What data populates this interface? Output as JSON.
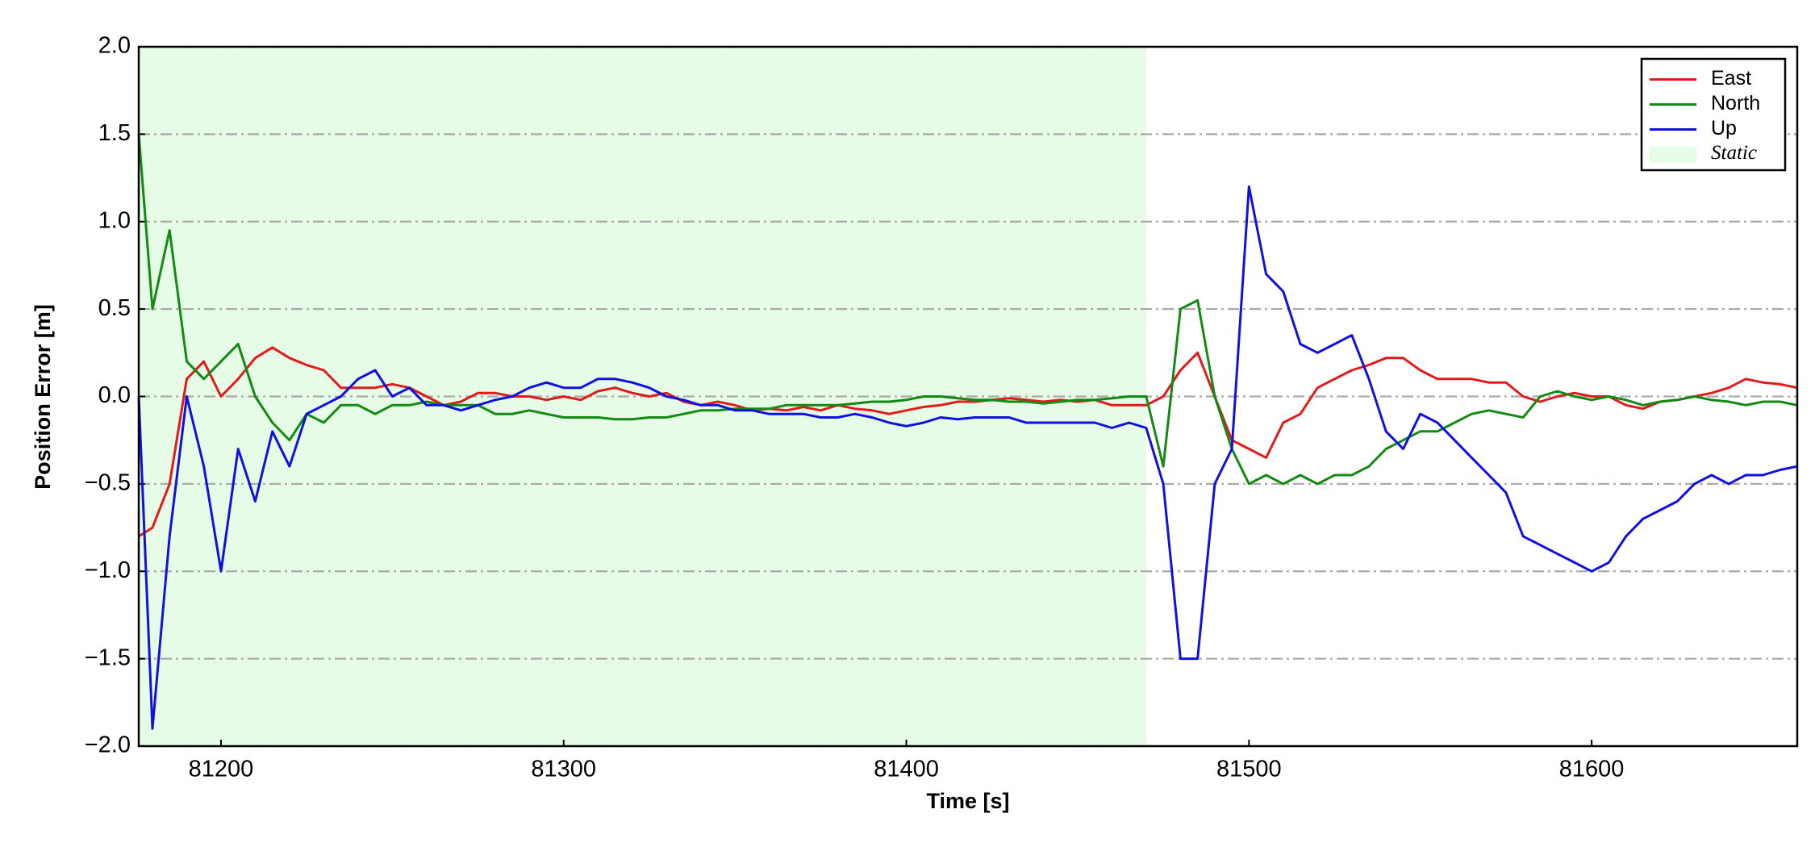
{
  "chart_data": {
    "type": "line",
    "xlabel": "Time [s]",
    "ylabel": "Position Error [m]",
    "xlim": [
      81176,
      81660
    ],
    "ylim": [
      -2.0,
      2.0
    ],
    "xticks": [
      81200,
      81300,
      81400,
      81500,
      81600
    ],
    "yticks": [
      {
        "value": -2.0,
        "label": "−2.0"
      },
      {
        "value": -1.5,
        "label": "−1.5"
      },
      {
        "value": -1.0,
        "label": "−1.0"
      },
      {
        "value": -0.5,
        "label": "−0.5"
      },
      {
        "value": 0.0,
        "label": "0.0"
      },
      {
        "value": 0.5,
        "label": "0.5"
      },
      {
        "value": 1.0,
        "label": "1.0"
      },
      {
        "value": 1.5,
        "label": "1.5"
      },
      {
        "value": 2.0,
        "label": "2.0"
      }
    ],
    "grid": true,
    "legend": "upper right",
    "shaded_regions": [
      {
        "name": "Static",
        "x": [
          81176,
          81470
        ],
        "color": "#e6fce6"
      }
    ],
    "x": [
      81176,
      81180,
      81185,
      81190,
      81195,
      81200,
      81205,
      81210,
      81215,
      81220,
      81225,
      81230,
      81235,
      81240,
      81245,
      81250,
      81255,
      81260,
      81265,
      81270,
      81275,
      81280,
      81285,
      81290,
      81295,
      81300,
      81305,
      81310,
      81315,
      81320,
      81325,
      81330,
      81335,
      81340,
      81345,
      81350,
      81355,
      81360,
      81365,
      81370,
      81375,
      81380,
      81385,
      81390,
      81395,
      81400,
      81405,
      81410,
      81415,
      81420,
      81425,
      81430,
      81435,
      81440,
      81445,
      81450,
      81455,
      81460,
      81465,
      81470,
      81475,
      81480,
      81485,
      81490,
      81495,
      81500,
      81505,
      81510,
      81515,
      81520,
      81525,
      81530,
      81535,
      81540,
      81545,
      81550,
      81555,
      81560,
      81565,
      81570,
      81575,
      81580,
      81585,
      81590,
      81595,
      81600,
      81605,
      81610,
      81615,
      81620,
      81625,
      81630,
      81635,
      81640,
      81645,
      81650,
      81655,
      81660
    ],
    "series": [
      {
        "name": "East",
        "color": "#e31a1c",
        "values": [
          -0.8,
          -0.75,
          -0.5,
          0.1,
          0.2,
          0.0,
          0.1,
          0.22,
          0.28,
          0.22,
          0.18,
          0.15,
          0.05,
          0.05,
          0.05,
          0.07,
          0.05,
          0.0,
          -0.05,
          -0.03,
          0.02,
          0.02,
          0.0,
          0.0,
          -0.02,
          0.0,
          -0.02,
          0.03,
          0.05,
          0.02,
          0.0,
          0.02,
          -0.03,
          -0.05,
          -0.03,
          -0.05,
          -0.08,
          -0.07,
          -0.08,
          -0.06,
          -0.08,
          -0.05,
          -0.07,
          -0.08,
          -0.1,
          -0.08,
          -0.06,
          -0.05,
          -0.03,
          -0.03,
          -0.02,
          -0.01,
          -0.02,
          -0.03,
          -0.02,
          -0.03,
          -0.02,
          -0.05,
          -0.05,
          -0.05,
          0.0,
          0.15,
          0.25,
          0.0,
          -0.25,
          -0.3,
          -0.35,
          -0.15,
          -0.1,
          0.05,
          0.1,
          0.15,
          0.18,
          0.22,
          0.22,
          0.15,
          0.1,
          0.1,
          0.1,
          0.08,
          0.08,
          0.0,
          -0.03,
          0.0,
          0.02,
          0.0,
          0.0,
          -0.05,
          -0.07,
          -0.03,
          -0.02,
          0.0,
          0.02,
          0.05,
          0.1,
          0.08,
          0.07,
          0.05
        ]
      },
      {
        "name": "North",
        "color": "#138a13",
        "values": [
          1.5,
          0.5,
          0.95,
          0.2,
          0.1,
          0.2,
          0.3,
          0.0,
          -0.15,
          -0.25,
          -0.1,
          -0.15,
          -0.05,
          -0.05,
          -0.1,
          -0.05,
          -0.05,
          -0.03,
          -0.05,
          -0.05,
          -0.05,
          -0.1,
          -0.1,
          -0.08,
          -0.1,
          -0.12,
          -0.12,
          -0.12,
          -0.13,
          -0.13,
          -0.12,
          -0.12,
          -0.1,
          -0.08,
          -0.08,
          -0.07,
          -0.07,
          -0.07,
          -0.05,
          -0.05,
          -0.05,
          -0.05,
          -0.04,
          -0.03,
          -0.03,
          -0.02,
          0.0,
          0.0,
          -0.01,
          -0.02,
          -0.02,
          -0.03,
          -0.03,
          -0.04,
          -0.03,
          -0.02,
          -0.02,
          -0.01,
          0.0,
          0.0,
          -0.4,
          0.5,
          0.55,
          0.0,
          -0.3,
          -0.5,
          -0.45,
          -0.5,
          -0.45,
          -0.5,
          -0.45,
          -0.45,
          -0.4,
          -0.3,
          -0.25,
          -0.2,
          -0.2,
          -0.15,
          -0.1,
          -0.08,
          -0.1,
          -0.12,
          0.0,
          0.03,
          0.0,
          -0.02,
          0.0,
          -0.02,
          -0.05,
          -0.03,
          -0.02,
          0.0,
          -0.02,
          -0.03,
          -0.05,
          -0.03,
          -0.03,
          -0.05
        ]
      },
      {
        "name": "Up",
        "color": "#1010e0",
        "values": [
          0.0,
          -1.9,
          -0.8,
          0.0,
          -0.4,
          -1.0,
          -0.3,
          -0.6,
          -0.2,
          -0.4,
          -0.1,
          -0.05,
          0.0,
          0.1,
          0.15,
          0.0,
          0.05,
          -0.05,
          -0.05,
          -0.08,
          -0.05,
          -0.02,
          0.0,
          0.05,
          0.08,
          0.05,
          0.05,
          0.1,
          0.1,
          0.08,
          0.05,
          0.0,
          -0.02,
          -0.05,
          -0.05,
          -0.08,
          -0.08,
          -0.1,
          -0.1,
          -0.1,
          -0.12,
          -0.12,
          -0.1,
          -0.12,
          -0.15,
          -0.17,
          -0.15,
          -0.12,
          -0.13,
          -0.12,
          -0.12,
          -0.12,
          -0.15,
          -0.15,
          -0.15,
          -0.15,
          -0.15,
          -0.18,
          -0.15,
          -0.18,
          -0.5,
          -1.5,
          -1.5,
          -0.5,
          -0.3,
          1.2,
          0.7,
          0.6,
          0.3,
          0.25,
          0.3,
          0.35,
          0.1,
          -0.2,
          -0.3,
          -0.1,
          -0.15,
          -0.25,
          -0.35,
          -0.45,
          -0.55,
          -0.8,
          -0.85,
          -0.9,
          -0.95,
          -1.0,
          -0.95,
          -0.8,
          -0.7,
          -0.65,
          -0.6,
          -0.5,
          -0.45,
          -0.5,
          -0.45,
          -0.45,
          -0.42,
          -0.4
        ]
      }
    ]
  }
}
